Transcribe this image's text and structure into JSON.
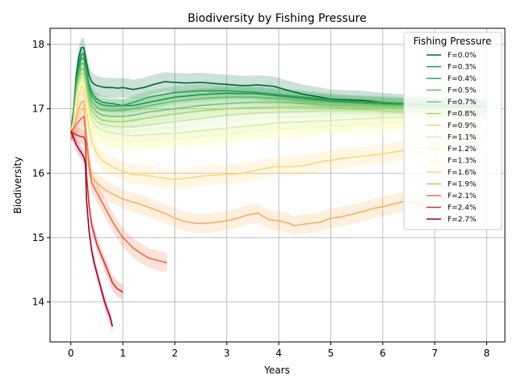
{
  "chart_data": {
    "type": "line",
    "title": "Biodiversity by Fishing Pressure",
    "xlabel": "Years",
    "ylabel": "Biodiversity",
    "xlim": [
      -0.4,
      8.35
    ],
    "ylim": [
      13.38,
      18.25
    ],
    "xticks": [
      0,
      1,
      2,
      3,
      4,
      5,
      6,
      7,
      8
    ],
    "yticks": [
      14,
      15,
      16,
      17,
      18
    ],
    "grid": true,
    "shaded_band": true,
    "legend": {
      "title": "Fishing Pressure",
      "placement": "top-right"
    },
    "series": [
      {
        "name": "F=0.0%",
        "color": "#006837",
        "band": 0.15,
        "x": [
          0,
          0.05,
          0.1,
          0.15,
          0.2,
          0.25,
          0.3,
          0.35,
          0.4,
          0.45,
          0.5,
          0.6,
          0.7,
          0.8,
          0.9,
          1.0,
          1.2,
          1.4,
          1.6,
          1.8,
          2.0,
          2.2,
          2.5,
          2.8,
          3.0,
          3.3,
          3.6,
          3.9,
          4.2,
          4.5,
          4.8,
          5.0,
          5.3,
          5.6,
          6.0,
          6.3,
          6.6,
          7.0,
          7.5,
          8.0
        ],
        "y": [
          16.65,
          16.95,
          17.5,
          17.8,
          17.95,
          17.95,
          17.72,
          17.52,
          17.42,
          17.38,
          17.36,
          17.34,
          17.33,
          17.33,
          17.32,
          17.33,
          17.3,
          17.33,
          17.38,
          17.42,
          17.41,
          17.4,
          17.41,
          17.39,
          17.38,
          17.36,
          17.37,
          17.35,
          17.28,
          17.22,
          17.18,
          17.15,
          17.14,
          17.13,
          17.1,
          17.08,
          17.06,
          17.04,
          17.02,
          17.0
        ]
      },
      {
        "name": "F=0.3%",
        "color": "#1a9850",
        "band": 0.1,
        "x": [
          0,
          0.05,
          0.1,
          0.15,
          0.2,
          0.25,
          0.3,
          0.35,
          0.4,
          0.5,
          0.6,
          0.8,
          1.0,
          1.2,
          1.5,
          2.0,
          2.5,
          3.0,
          3.5,
          4.0,
          4.5,
          5.0,
          5.5,
          6.0,
          6.5,
          7.0,
          7.5,
          8.0
        ],
        "y": [
          16.65,
          16.9,
          17.4,
          17.7,
          17.85,
          17.85,
          17.6,
          17.38,
          17.25,
          17.15,
          17.1,
          17.08,
          17.05,
          17.05,
          17.1,
          17.18,
          17.22,
          17.24,
          17.24,
          17.2,
          17.16,
          17.12,
          17.1,
          17.08,
          17.06,
          17.05,
          17.04,
          17.03
        ]
      },
      {
        "name": "F=0.4%",
        "color": "#31a354",
        "band": 0.1,
        "x": [
          0,
          0.05,
          0.1,
          0.15,
          0.2,
          0.25,
          0.3,
          0.35,
          0.4,
          0.5,
          0.6,
          0.8,
          1.0,
          1.2,
          1.5,
          2.0,
          2.5,
          3.0,
          3.5,
          4.0,
          4.5,
          5.0,
          5.5,
          6.0,
          6.5,
          7.0,
          7.5,
          8.0
        ],
        "y": [
          16.65,
          16.88,
          17.35,
          17.62,
          17.78,
          17.78,
          17.55,
          17.32,
          17.2,
          17.1,
          17.06,
          17.04,
          17.05,
          17.1,
          17.18,
          17.25,
          17.28,
          17.28,
          17.26,
          17.22,
          17.18,
          17.14,
          17.11,
          17.1,
          17.08,
          17.06,
          17.05,
          17.04
        ]
      },
      {
        "name": "F=0.5%",
        "color": "#66bd63",
        "band": 0.1,
        "x": [
          0,
          0.05,
          0.1,
          0.15,
          0.2,
          0.25,
          0.3,
          0.35,
          0.4,
          0.5,
          0.6,
          0.8,
          1.0,
          1.2,
          1.5,
          2.0,
          2.5,
          3.0,
          3.5,
          4.0,
          4.5,
          5.0,
          5.5,
          6.0,
          6.5,
          7.0,
          7.5,
          8.0
        ],
        "y": [
          16.65,
          16.85,
          17.3,
          17.55,
          17.7,
          17.7,
          17.45,
          17.25,
          17.12,
          17.02,
          16.98,
          16.97,
          16.98,
          17.0,
          17.05,
          17.12,
          17.16,
          17.18,
          17.18,
          17.16,
          17.13,
          17.1,
          17.08,
          17.06,
          17.05,
          17.04,
          17.03,
          17.02
        ]
      },
      {
        "name": "F=0.7%",
        "color": "#78c679",
        "band": 0.1,
        "x": [
          0,
          0.05,
          0.1,
          0.15,
          0.2,
          0.25,
          0.3,
          0.35,
          0.4,
          0.5,
          0.6,
          0.8,
          1.0,
          1.2,
          1.5,
          2.0,
          2.5,
          3.0,
          3.5,
          4.0,
          4.5,
          5.0,
          5.5,
          6.0,
          6.5,
          7.0,
          7.5,
          8.0
        ],
        "y": [
          16.65,
          16.83,
          17.25,
          17.5,
          17.62,
          17.62,
          17.38,
          17.18,
          17.05,
          16.95,
          16.9,
          16.88,
          16.88,
          16.9,
          16.95,
          17.0,
          17.05,
          17.08,
          17.1,
          17.1,
          17.08,
          17.06,
          17.05,
          17.04,
          17.03,
          17.02,
          17.02,
          17.01
        ]
      },
      {
        "name": "F=0.8%",
        "color": "#a6d96a",
        "band": 0.1,
        "x": [
          0,
          0.05,
          0.1,
          0.15,
          0.2,
          0.25,
          0.3,
          0.35,
          0.4,
          0.5,
          0.6,
          0.8,
          1.0,
          1.2,
          1.5,
          2.0,
          2.5,
          3.0,
          3.5,
          4.0,
          4.5,
          5.0,
          5.5,
          6.0,
          6.5,
          7.0,
          7.5,
          8.0
        ],
        "y": [
          16.65,
          16.8,
          17.2,
          17.45,
          17.55,
          17.55,
          17.3,
          17.1,
          16.98,
          16.88,
          16.82,
          16.8,
          16.8,
          16.82,
          16.86,
          16.92,
          16.97,
          17.0,
          17.02,
          17.03,
          17.03,
          17.02,
          17.02,
          17.01,
          17.01,
          17.0,
          17.0,
          17.0
        ]
      },
      {
        "name": "F=0.9%",
        "color": "#c2e699",
        "band": 0.1,
        "x": [
          0,
          0.05,
          0.1,
          0.15,
          0.2,
          0.25,
          0.3,
          0.35,
          0.4,
          0.5,
          0.6,
          0.8,
          1.0,
          1.2,
          1.5,
          2.0,
          2.5,
          3.0,
          3.5,
          4.0,
          4.5,
          5.0,
          5.5,
          6.0,
          6.5,
          7.0,
          7.5,
          8.0
        ],
        "y": [
          16.65,
          16.78,
          17.15,
          17.4,
          17.5,
          17.48,
          17.22,
          17.02,
          16.9,
          16.8,
          16.76,
          16.73,
          16.72,
          16.72,
          16.75,
          16.8,
          16.85,
          16.9,
          16.93,
          16.95,
          16.96,
          16.97,
          16.97,
          16.98,
          16.98,
          16.98,
          16.99,
          16.99
        ]
      },
      {
        "name": "F=1.1%",
        "color": "#d9f0a3",
        "band": 0.1,
        "x": [
          0,
          0.05,
          0.1,
          0.15,
          0.2,
          0.25,
          0.3,
          0.35,
          0.4,
          0.5,
          0.6,
          0.8,
          1.0,
          1.2,
          1.5,
          2.0,
          2.5,
          3.0,
          3.5,
          4.0,
          4.5,
          5.0,
          5.5,
          6.0,
          6.5,
          7.0,
          7.5,
          8.0
        ],
        "y": [
          16.65,
          16.76,
          17.1,
          17.35,
          17.45,
          17.42,
          17.15,
          16.95,
          16.82,
          16.72,
          16.67,
          16.62,
          16.6,
          16.58,
          16.6,
          16.62,
          16.66,
          16.7,
          16.74,
          16.78,
          16.8,
          16.82,
          16.84,
          16.86,
          16.87,
          16.88,
          16.89,
          16.9
        ]
      },
      {
        "name": "F=1.2%",
        "color": "#f7fcb9",
        "band": 0.12,
        "x": [
          0,
          0.05,
          0.1,
          0.15,
          0.2,
          0.25,
          0.3,
          0.35,
          0.4,
          0.5,
          0.6,
          0.8,
          1.0,
          1.2,
          1.5,
          2.0,
          2.5,
          3.0,
          3.5,
          4.0,
          4.5,
          5.0,
          5.5,
          6.0,
          6.5,
          7.0,
          7.5,
          8.0
        ],
        "y": [
          16.65,
          16.74,
          17.05,
          17.3,
          17.42,
          17.38,
          17.1,
          16.88,
          16.74,
          16.62,
          16.56,
          16.52,
          16.5,
          16.48,
          16.5,
          16.52,
          16.56,
          16.6,
          16.64,
          16.68,
          16.7,
          16.72,
          16.74,
          16.76,
          16.78,
          16.8,
          16.82,
          16.83
        ]
      },
      {
        "name": "F=1.3%",
        "color": "#ffffcc",
        "band": 0.12,
        "x": [
          0,
          0.05,
          0.1,
          0.15,
          0.2,
          0.25,
          0.3,
          0.35,
          0.4,
          0.5,
          0.6,
          0.8,
          1.0,
          1.2,
          1.5,
          2.0,
          2.5,
          3.0,
          3.5,
          4.0,
          4.5,
          5.0,
          5.5,
          6.0,
          6.5,
          7.0,
          7.5,
          8.0
        ],
        "y": [
          16.65,
          16.72,
          17.0,
          17.25,
          17.38,
          17.34,
          17.05,
          16.82,
          16.68,
          16.55,
          16.48,
          16.44,
          16.42,
          16.42,
          16.44,
          16.46,
          16.5,
          16.54,
          16.58,
          16.62,
          16.65,
          16.67,
          16.7,
          16.72,
          16.74,
          16.76,
          16.78,
          16.8
        ]
      },
      {
        "name": "F=1.6%",
        "color": "#fed976",
        "band": 0.15,
        "x": [
          0,
          0.05,
          0.1,
          0.15,
          0.2,
          0.25,
          0.3,
          0.35,
          0.4,
          0.5,
          0.6,
          0.7,
          0.8,
          0.9,
          1.0,
          1.2,
          1.5,
          1.8,
          2.0,
          2.3,
          2.6,
          3.0,
          3.3,
          3.6,
          3.9,
          4.2,
          4.5,
          4.8,
          5.0,
          5.3,
          5.6,
          6.0,
          6.3,
          6.6,
          7.0,
          7.5,
          8.0
        ],
        "y": [
          16.65,
          16.7,
          16.95,
          17.2,
          17.35,
          17.32,
          17.0,
          16.7,
          16.5,
          16.3,
          16.2,
          16.15,
          16.1,
          16.06,
          16.03,
          15.98,
          15.96,
          15.92,
          15.9,
          15.93,
          15.96,
          15.98,
          16.0,
          16.05,
          16.1,
          16.1,
          16.12,
          16.18,
          16.2,
          16.24,
          16.26,
          16.3,
          16.34,
          16.38,
          16.42,
          16.46,
          16.5
        ]
      },
      {
        "name": "F=1.9%",
        "color": "#fdae61",
        "band": 0.15,
        "x": [
          0,
          0.05,
          0.1,
          0.15,
          0.2,
          0.25,
          0.3,
          0.35,
          0.4,
          0.5,
          0.6,
          0.7,
          0.8,
          0.9,
          1.0,
          1.2,
          1.4,
          1.6,
          1.8,
          2.0,
          2.2,
          2.4,
          2.6,
          2.8,
          3.0,
          3.2,
          3.4,
          3.6,
          3.8,
          4.0,
          4.2,
          4.3,
          4.4,
          4.6,
          4.8,
          5.0,
          5.2,
          5.4,
          5.6,
          5.8,
          6.0,
          6.2,
          6.4,
          6.6,
          6.8
        ],
        "y": [
          16.65,
          16.7,
          16.85,
          17.0,
          17.1,
          17.12,
          16.6,
          16.2,
          15.95,
          15.85,
          15.78,
          15.72,
          15.68,
          15.64,
          15.6,
          15.55,
          15.5,
          15.44,
          15.38,
          15.3,
          15.25,
          15.22,
          15.22,
          15.24,
          15.26,
          15.3,
          15.35,
          15.38,
          15.28,
          15.26,
          15.22,
          15.18,
          15.2,
          15.22,
          15.24,
          15.3,
          15.32,
          15.36,
          15.4,
          15.45,
          15.48,
          15.52,
          15.56,
          15.55,
          15.5
        ]
      },
      {
        "name": "F=2.1%",
        "color": "#f46d43",
        "band": 0.15,
        "x": [
          0,
          0.05,
          0.1,
          0.15,
          0.2,
          0.25,
          0.3,
          0.35,
          0.4,
          0.5,
          0.6,
          0.7,
          0.8,
          0.9,
          1.0,
          1.1,
          1.2,
          1.3,
          1.4,
          1.5,
          1.6,
          1.7,
          1.8,
          1.85
        ],
        "y": [
          16.65,
          16.7,
          16.75,
          16.8,
          16.85,
          16.88,
          16.5,
          16.1,
          15.85,
          15.7,
          15.55,
          15.4,
          15.25,
          15.12,
          15.0,
          14.92,
          14.84,
          14.78,
          14.73,
          14.68,
          14.66,
          14.64,
          14.62,
          14.61
        ]
      },
      {
        "name": "F=2.4%",
        "color": "#d73027",
        "band": 0.12,
        "x": [
          0,
          0.05,
          0.1,
          0.15,
          0.2,
          0.25,
          0.28,
          0.3,
          0.35,
          0.4,
          0.5,
          0.6,
          0.7,
          0.8,
          0.9,
          0.95,
          1.0
        ],
        "y": [
          16.65,
          16.62,
          16.6,
          16.58,
          16.57,
          16.56,
          16.5,
          16.0,
          15.5,
          15.2,
          14.9,
          14.7,
          14.5,
          14.3,
          14.2,
          14.18,
          14.15
        ]
      },
      {
        "name": "F=2.7%",
        "color": "#a50026",
        "band": 0.1,
        "x": [
          0,
          0.05,
          0.1,
          0.15,
          0.2,
          0.25,
          0.28,
          0.3,
          0.35,
          0.4,
          0.45,
          0.5,
          0.55,
          0.6,
          0.65,
          0.7,
          0.75,
          0.8
        ],
        "y": [
          16.65,
          16.55,
          16.45,
          16.38,
          16.32,
          16.25,
          16.15,
          15.6,
          15.1,
          14.8,
          14.6,
          14.45,
          14.3,
          14.15,
          14.0,
          13.88,
          13.78,
          13.62
        ]
      }
    ]
  }
}
